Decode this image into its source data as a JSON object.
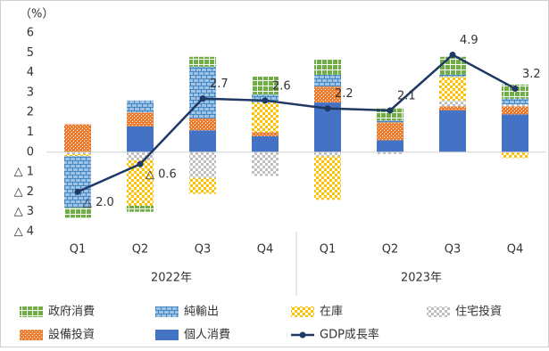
{
  "chart_data": {
    "type": "stacked-bar-line",
    "y_unit": "（%）",
    "categories": [
      "Q1",
      "Q2",
      "Q3",
      "Q4",
      "Q1",
      "Q2",
      "Q3",
      "Q4"
    ],
    "x_groups": [
      "2022年",
      "2023年"
    ],
    "ylim": [
      -4,
      6
    ],
    "yticks": [
      {
        "value": -4,
        "label": "△ 4"
      },
      {
        "value": -3,
        "label": "△ 3"
      },
      {
        "value": -2,
        "label": "△ 2"
      },
      {
        "value": -1,
        "label": "△ 1"
      },
      0,
      1,
      2,
      3,
      4,
      5,
      6
    ],
    "grid": false,
    "series": [
      {
        "name": "政府消費",
        "color": "#70ad47",
        "pattern": "grid",
        "values": [
          -0.5,
          -0.3,
          0.5,
          0.9,
          0.8,
          0.6,
          0.9,
          0.7
        ]
      },
      {
        "name": "純輸出",
        "color": "#9dc3e6",
        "pattern": "brick",
        "values": [
          -2.6,
          0.6,
          2.6,
          0.4,
          0.6,
          0.1,
          0.1,
          0.3
        ]
      },
      {
        "name": "在庫",
        "color": "#ffc000",
        "pattern": "check",
        "values": [
          -0.1,
          -2.3,
          -0.8,
          1.5,
          -2.2,
          0,
          1.2,
          -0.3
        ]
      },
      {
        "name": "住宅投資",
        "color": "#bfbfbf",
        "pattern": "check",
        "values": [
          -0.1,
          -0.4,
          -1.3,
          -1.2,
          -0.2,
          -0.1,
          0.3,
          0.1
        ]
      },
      {
        "name": "設備投資",
        "color": "#ed7d31",
        "pattern": "dots",
        "values": [
          1.4,
          0.7,
          0.6,
          0.2,
          0.8,
          0.9,
          0.2,
          0.4
        ]
      },
      {
        "name": "個人消費",
        "color": "#4472c4",
        "pattern": "solid",
        "values": [
          0,
          1.3,
          1.1,
          0.8,
          2.5,
          0.6,
          2.1,
          1.9
        ]
      }
    ],
    "line": {
      "name": "GDP成長率",
      "color": "#203864",
      "values": [
        -2.0,
        -0.6,
        2.7,
        2.6,
        2.2,
        2.1,
        4.9,
        3.2
      ],
      "value_labels": [
        "△ 2.0",
        "△ 0.6",
        "2.7",
        "2.6",
        "2.2",
        "2.1",
        "4.9",
        "3.2"
      ]
    }
  }
}
